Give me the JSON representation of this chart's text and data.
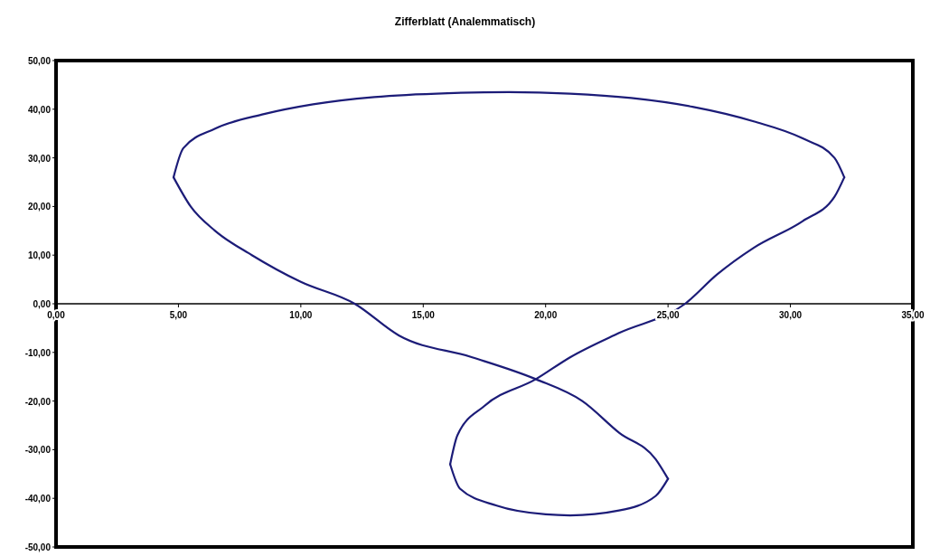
{
  "chart_data": {
    "type": "line",
    "title": "Zifferblatt (Analemmatisch)",
    "xlim": [
      0,
      35
    ],
    "ylim": [
      -50,
      50
    ],
    "xticks": [
      {
        "value": 0,
        "label": "0,00"
      },
      {
        "value": 5,
        "label": "5,00"
      },
      {
        "value": 10,
        "label": "10,00"
      },
      {
        "value": 15,
        "label": "15,00"
      },
      {
        "value": 20,
        "label": "20,00"
      },
      {
        "value": 25,
        "label": "25,00"
      },
      {
        "value": 30,
        "label": "30,00"
      },
      {
        "value": 35,
        "label": "35,00"
      }
    ],
    "yticks": [
      {
        "value": -50,
        "label": "-50,00"
      },
      {
        "value": -40,
        "label": "-40,00"
      },
      {
        "value": -30,
        "label": "-30,00"
      },
      {
        "value": -20,
        "label": "-20,00"
      },
      {
        "value": -10,
        "label": "-10,00"
      },
      {
        "value": 0,
        "label": "0,00"
      },
      {
        "value": 10,
        "label": "10,00"
      },
      {
        "value": 20,
        "label": "20,00"
      },
      {
        "value": 30,
        "label": "30,00"
      },
      {
        "value": 40,
        "label": "40,00"
      },
      {
        "value": 50,
        "label": "50,00"
      }
    ],
    "grid": false,
    "marker": "none",
    "line_style": "solid",
    "series": [
      {
        "color": "#1c1c78",
        "x": [
          4.8,
          5.2,
          6.5,
          8.5,
          10.5,
          13,
          16,
          18.5,
          21,
          23.5,
          26,
          28.5,
          30.5,
          31.8,
          32.2
        ],
        "values": [
          26,
          32,
          36,
          39,
          41,
          42.5,
          43.3,
          43.5,
          43.2,
          42.3,
          40.5,
          37.5,
          34,
          30,
          26
        ]
      },
      {
        "color": "#1c1c78",
        "x": [
          32.2,
          31.8,
          30.5,
          28.5,
          27,
          25.7,
          23,
          21,
          19.6,
          17.5,
          16.4,
          16.1
        ],
        "values": [
          26,
          22,
          17,
          11.5,
          6,
          0,
          -6,
          -11,
          -15.5,
          -21,
          -27,
          -33
        ]
      },
      {
        "color": "#1c1c78",
        "x": [
          16.1,
          16.5,
          18,
          20,
          21,
          23,
          24.5,
          25
        ],
        "values": [
          -33,
          -38,
          -41.5,
          -43.3,
          -43.5,
          -42.5,
          -39.5,
          -36
        ]
      },
      {
        "color": "#1c1c78",
        "x": [
          25,
          24.5,
          23,
          21.5,
          19.6,
          17,
          14,
          12.2,
          10,
          8,
          6.5,
          5.5,
          4.8
        ],
        "values": [
          -36,
          -32,
          -26.5,
          -20,
          -15.5,
          -11,
          -6.5,
          0,
          4.5,
          10,
          15,
          20,
          26
        ]
      }
    ]
  }
}
